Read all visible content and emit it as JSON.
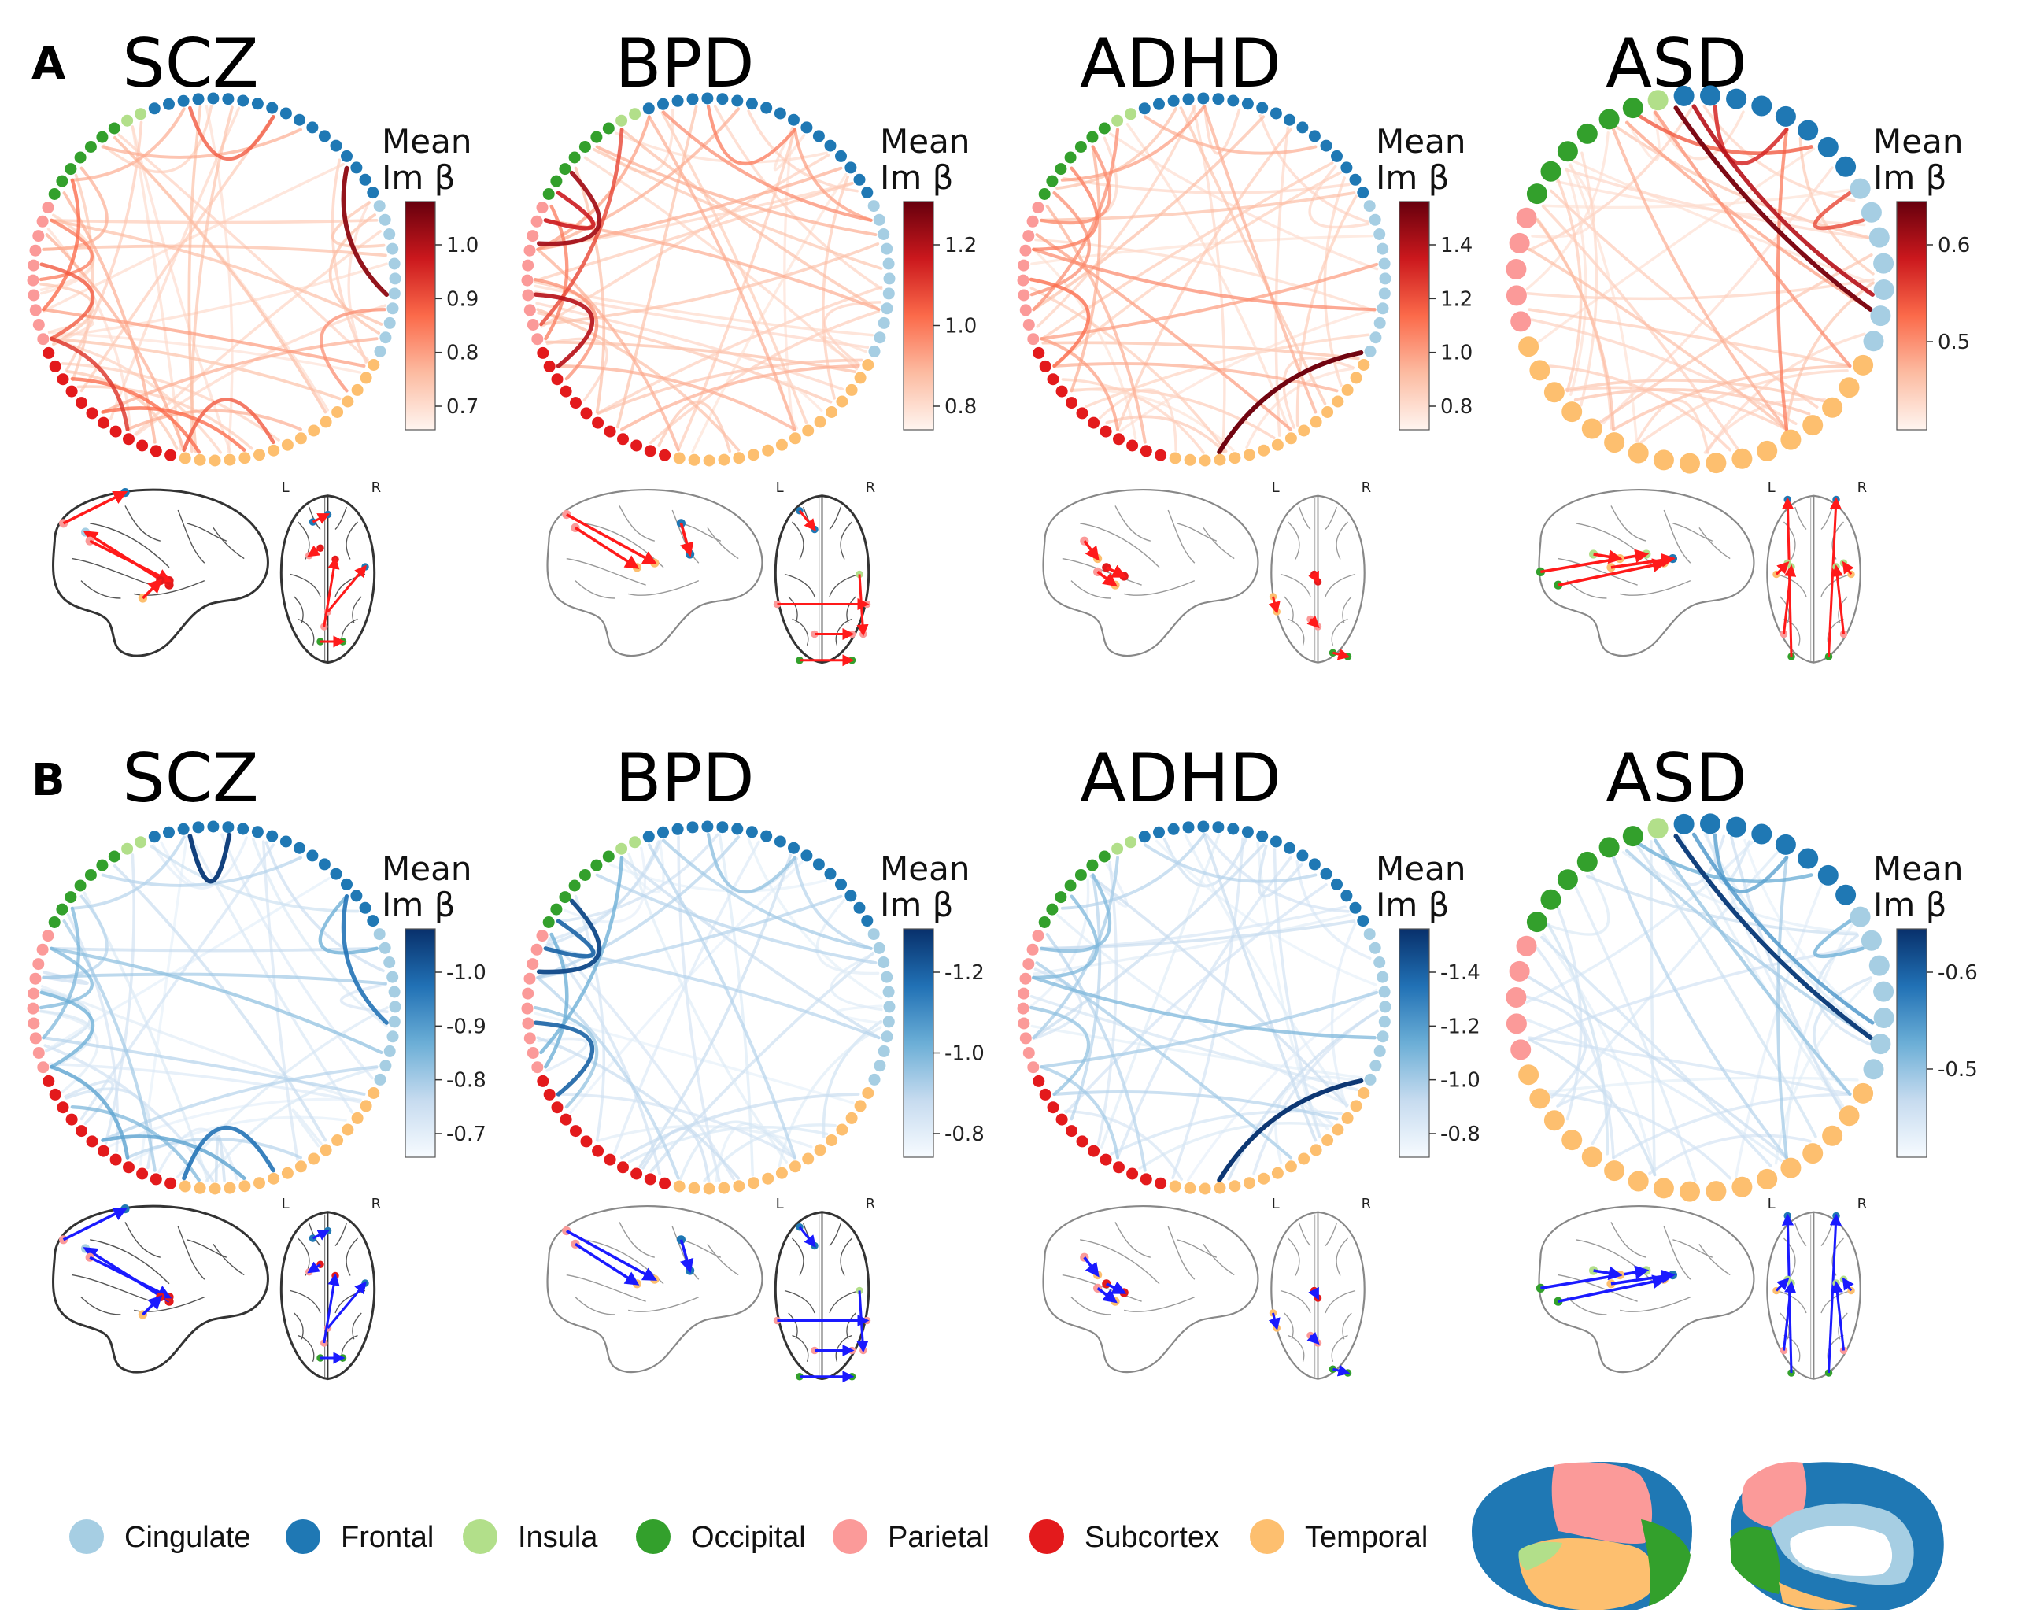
{
  "panels": [
    {
      "letter": "A",
      "color_theme": "reds",
      "items": [
        {
          "title": "SCZ",
          "colorbar": {
            "title_line1": "Mean",
            "title_line2": "Im β",
            "ticks": [
              "1.0",
              "0.9",
              "0.8",
              "0.7"
            ]
          }
        },
        {
          "title": "BPD",
          "colorbar": {
            "title_line1": "Mean",
            "title_line2": "Im β",
            "ticks": [
              "1.2",
              "1.0",
              "0.8"
            ]
          }
        },
        {
          "title": "ADHD",
          "colorbar": {
            "title_line1": "Mean",
            "title_line2": "Im β",
            "ticks": [
              "1.4",
              "1.2",
              "1.0",
              "0.8"
            ]
          }
        },
        {
          "title": "ASD",
          "colorbar": {
            "title_line1": "Mean",
            "title_line2": "Im β",
            "ticks": [
              "0.6",
              "0.5"
            ]
          }
        }
      ]
    },
    {
      "letter": "B",
      "color_theme": "blues",
      "items": [
        {
          "title": "SCZ",
          "colorbar": {
            "title_line1": "Mean",
            "title_line2": "Im β",
            "ticks": [
              "-1.0",
              "-0.9",
              "-0.8",
              "-0.7"
            ]
          }
        },
        {
          "title": "BPD",
          "colorbar": {
            "title_line1": "Mean",
            "title_line2": "Im β",
            "ticks": [
              "-1.2",
              "-1.0",
              "-0.8"
            ]
          }
        },
        {
          "title": "ADHD",
          "colorbar": {
            "title_line1": "Mean",
            "title_line2": "Im β",
            "ticks": [
              "-1.4",
              "-1.2",
              "-1.0",
              "-0.8"
            ]
          }
        },
        {
          "title": "ASD",
          "colorbar": {
            "title_line1": "Mean",
            "title_line2": "Im β",
            "ticks": [
              "-0.6",
              "-0.5"
            ]
          }
        }
      ]
    }
  ],
  "brain_labels": {
    "left": "L",
    "right": "R"
  },
  "legend": [
    {
      "label": "Cingulate",
      "color": "#a6cee3"
    },
    {
      "label": "Frontal",
      "color": "#1f78b4"
    },
    {
      "label": "Insula",
      "color": "#b2df8a"
    },
    {
      "label": "Occipital",
      "color": "#33a02c"
    },
    {
      "label": "Parietal",
      "color": "#fb9a99"
    },
    {
      "label": "Subcortex",
      "color": "#e31a1c"
    },
    {
      "label": "Temporal",
      "color": "#fdbf6f"
    }
  ],
  "colormaps": {
    "reds": [
      "#fff5f0",
      "#fcbba1",
      "#fb6a4a",
      "#cb181d",
      "#67000d"
    ],
    "blues": [
      "#f7fbff",
      "#c6dbef",
      "#6baed6",
      "#2171b5",
      "#08306b"
    ]
  },
  "arrow_colors": {
    "reds": "#ff1a1a",
    "blues": "#1a1aff"
  }
}
